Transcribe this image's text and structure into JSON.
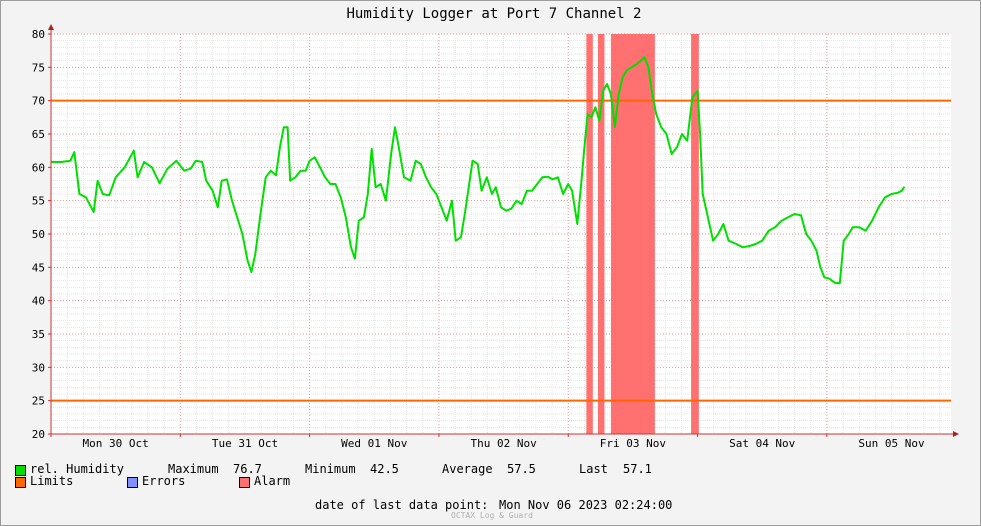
{
  "chart_data": {
    "type": "line",
    "title": "Humidity Logger at Port 7 Channel 2",
    "ylim": [
      20,
      80
    ],
    "yticks": [
      20,
      25,
      30,
      35,
      40,
      45,
      50,
      55,
      60,
      65,
      70,
      75,
      80
    ],
    "day_labels": [
      "Mon 30 Oct",
      "Tue 31 Oct",
      "Wed 01 Nov",
      "Thu 02 Nov",
      "Fri 03 Nov",
      "Sat 04 Nov",
      "Sun 05 Nov"
    ],
    "days_span": 6.96,
    "grid": true,
    "limits": [
      70,
      25
    ],
    "alarm_periods": [
      [
        4.14,
        4.19
      ],
      [
        4.23,
        4.28
      ],
      [
        4.33,
        4.67
      ],
      [
        4.95,
        5.01
      ]
    ],
    "series": [
      {
        "name": "rel. Humidity",
        "color": "#00e000",
        "points": [
          [
            0.0,
            60.8
          ],
          [
            0.08,
            60.8
          ],
          [
            0.15,
            61.0
          ],
          [
            0.18,
            62.3
          ],
          [
            0.22,
            56.0
          ],
          [
            0.27,
            55.5
          ],
          [
            0.33,
            53.3
          ],
          [
            0.36,
            58.0
          ],
          [
            0.4,
            56.0
          ],
          [
            0.45,
            55.8
          ],
          [
            0.5,
            58.5
          ],
          [
            0.57,
            60.0
          ],
          [
            0.64,
            62.5
          ],
          [
            0.67,
            58.5
          ],
          [
            0.72,
            60.8
          ],
          [
            0.78,
            60.0
          ],
          [
            0.84,
            57.6
          ],
          [
            0.9,
            59.8
          ],
          [
            0.97,
            61.0
          ],
          [
            1.03,
            59.5
          ],
          [
            1.08,
            59.8
          ],
          [
            1.12,
            61.0
          ],
          [
            1.17,
            60.8
          ],
          [
            1.2,
            58.0
          ],
          [
            1.25,
            56.5
          ],
          [
            1.29,
            54.0
          ],
          [
            1.32,
            58.0
          ],
          [
            1.36,
            58.2
          ],
          [
            1.4,
            55.0
          ],
          [
            1.44,
            52.5
          ],
          [
            1.48,
            50.0
          ],
          [
            1.52,
            46.0
          ],
          [
            1.55,
            44.3
          ],
          [
            1.58,
            47.0
          ],
          [
            1.62,
            53.0
          ],
          [
            1.66,
            58.5
          ],
          [
            1.7,
            59.5
          ],
          [
            1.74,
            58.8
          ],
          [
            1.77,
            63.0
          ],
          [
            1.8,
            66.0
          ],
          [
            1.83,
            66.0
          ],
          [
            1.85,
            58.0
          ],
          [
            1.89,
            58.5
          ],
          [
            1.93,
            59.5
          ],
          [
            1.97,
            59.5
          ],
          [
            2.0,
            61.0
          ],
          [
            2.04,
            61.5
          ],
          [
            2.08,
            60.0
          ],
          [
            2.12,
            58.5
          ],
          [
            2.16,
            57.5
          ],
          [
            2.2,
            57.5
          ],
          [
            2.24,
            55.5
          ],
          [
            2.28,
            52.5
          ],
          [
            2.32,
            48.0
          ],
          [
            2.35,
            46.3
          ],
          [
            2.38,
            52.0
          ],
          [
            2.42,
            52.5
          ],
          [
            2.45,
            56.0
          ],
          [
            2.48,
            62.8
          ],
          [
            2.51,
            57.0
          ],
          [
            2.55,
            57.5
          ],
          [
            2.59,
            55.0
          ],
          [
            2.63,
            62.0
          ],
          [
            2.66,
            66.0
          ],
          [
            2.69,
            63.0
          ],
          [
            2.73,
            58.5
          ],
          [
            2.78,
            58.0
          ],
          [
            2.82,
            61.0
          ],
          [
            2.86,
            60.5
          ],
          [
            2.9,
            58.5
          ],
          [
            2.94,
            57.0
          ],
          [
            2.98,
            56.0
          ],
          [
            3.02,
            54.0
          ],
          [
            3.06,
            52.0
          ],
          [
            3.1,
            55.0
          ],
          [
            3.13,
            49.0
          ],
          [
            3.17,
            49.5
          ],
          [
            3.2,
            53.0
          ],
          [
            3.23,
            57.0
          ],
          [
            3.26,
            61.0
          ],
          [
            3.3,
            60.5
          ],
          [
            3.33,
            56.5
          ],
          [
            3.37,
            58.5
          ],
          [
            3.41,
            56.0
          ],
          [
            3.44,
            57.0
          ],
          [
            3.48,
            54.0
          ],
          [
            3.52,
            53.5
          ],
          [
            3.56,
            53.8
          ],
          [
            3.6,
            55.0
          ],
          [
            3.64,
            54.5
          ],
          [
            3.68,
            56.5
          ],
          [
            3.72,
            56.5
          ],
          [
            3.76,
            57.5
          ],
          [
            3.8,
            58.5
          ],
          [
            3.84,
            58.6
          ],
          [
            3.88,
            58.2
          ],
          [
            3.92,
            58.5
          ],
          [
            3.96,
            56.0
          ],
          [
            4.0,
            57.5
          ],
          [
            4.03,
            56.5
          ],
          [
            4.07,
            51.5
          ],
          [
            4.1,
            57.5
          ],
          [
            4.12,
            62.0
          ],
          [
            4.15,
            68.0
          ],
          [
            4.18,
            67.5
          ],
          [
            4.21,
            69.0
          ],
          [
            4.24,
            67.0
          ],
          [
            4.27,
            71.5
          ],
          [
            4.3,
            72.5
          ],
          [
            4.33,
            71.0
          ],
          [
            4.36,
            66.0
          ],
          [
            4.39,
            71.0
          ],
          [
            4.42,
            73.5
          ],
          [
            4.45,
            74.5
          ],
          [
            4.49,
            75.0
          ],
          [
            4.53,
            75.5
          ],
          [
            4.56,
            76.0
          ],
          [
            4.59,
            76.5
          ],
          [
            4.62,
            75.0
          ],
          [
            4.65,
            71.0
          ],
          [
            4.68,
            68.0
          ],
          [
            4.72,
            66.0
          ],
          [
            4.76,
            65.0
          ],
          [
            4.8,
            62.0
          ],
          [
            4.84,
            63.0
          ],
          [
            4.88,
            65.0
          ],
          [
            4.92,
            64.0
          ],
          [
            4.96,
            70.5
          ],
          [
            5.0,
            71.5
          ],
          [
            5.02,
            65.0
          ],
          [
            5.04,
            56.0
          ],
          [
            5.08,
            52.5
          ],
          [
            5.12,
            49.0
          ],
          [
            5.16,
            50.0
          ],
          [
            5.2,
            51.5
          ],
          [
            5.24,
            49.0
          ],
          [
            5.3,
            48.5
          ],
          [
            5.35,
            48.0
          ],
          [
            5.4,
            48.2
          ],
          [
            5.45,
            48.5
          ],
          [
            5.5,
            49.0
          ],
          [
            5.55,
            50.5
          ],
          [
            5.6,
            51.0
          ],
          [
            5.65,
            52.0
          ],
          [
            5.7,
            52.5
          ],
          [
            5.75,
            53.0
          ],
          [
            5.8,
            52.8
          ],
          [
            5.84,
            50.0
          ],
          [
            5.88,
            49.0
          ],
          [
            5.92,
            47.5
          ],
          [
            5.95,
            45.0
          ],
          [
            5.98,
            43.5
          ],
          [
            6.02,
            43.3
          ],
          [
            6.06,
            42.7
          ],
          [
            6.1,
            42.6
          ],
          [
            6.13,
            49.0
          ],
          [
            6.17,
            50.0
          ],
          [
            6.2,
            51.0
          ],
          [
            6.25,
            51.0
          ],
          [
            6.3,
            50.5
          ],
          [
            6.35,
            52.0
          ],
          [
            6.4,
            54.0
          ],
          [
            6.45,
            55.5
          ],
          [
            6.5,
            56.0
          ],
          [
            6.55,
            56.2
          ],
          [
            6.58,
            56.5
          ],
          [
            6.6,
            57.1
          ]
        ]
      }
    ]
  },
  "legend": {
    "humidity_label": "rel. Humidity",
    "humidity_color": "#00e000",
    "maximum_label": "Maximum",
    "maximum_value": "76.7",
    "minimum_label": "Minimum",
    "minimum_value": "42.5",
    "average_label": "Average",
    "average_value": "57.5",
    "last_label": "Last",
    "last_value": "57.1",
    "limits_label": "Limits",
    "limits_color": "#ff6600",
    "errors_label": "Errors",
    "errors_color": "#8090ff",
    "alarm_label": "Alarm",
    "alarm_color": "#ff7070"
  },
  "footer": {
    "last_point_label": "date of last data point:",
    "last_point_value": "Mon Nov 06 2023 02:24:00",
    "credit": "OCTAX Log & Guard"
  }
}
